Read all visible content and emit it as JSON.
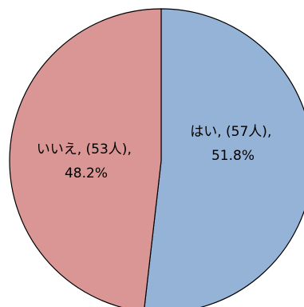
{
  "chart_data": {
    "type": "pie",
    "start_angle_deg": 90,
    "direction": "clockwise",
    "slices": [
      {
        "category": "はい",
        "count": "(57人)",
        "count_value": 57,
        "percent": "51.8%",
        "percent_value": 51.8,
        "color": "#95b3d7"
      },
      {
        "category": "いいえ",
        "count": "(53人)",
        "count_value": 53,
        "percent": "48.2%",
        "percent_value": 48.2,
        "color": "#d99694"
      }
    ],
    "data_labels": true,
    "legend": "none"
  }
}
